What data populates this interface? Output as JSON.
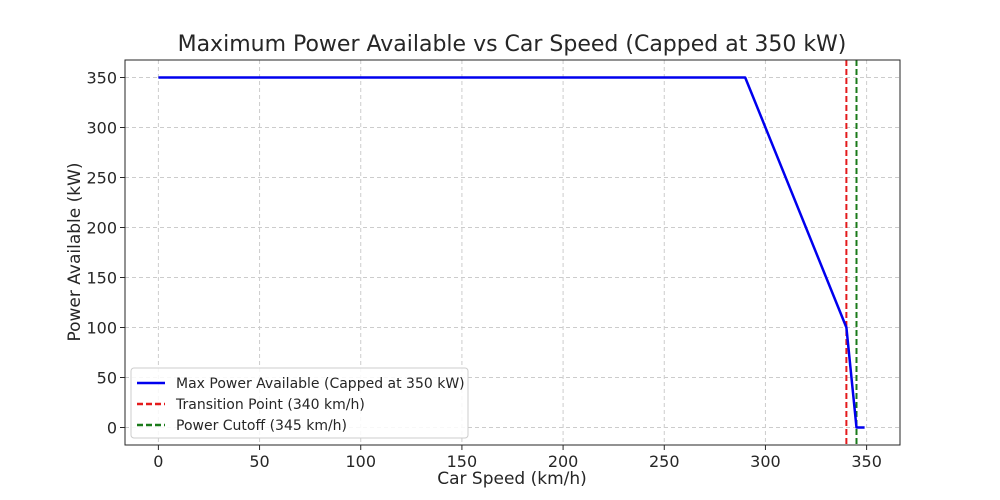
{
  "chart_data": {
    "type": "line",
    "title": "Maximum Power Available vs Car Speed (Capped at 350 kW)",
    "xlabel": "Car Speed (km/h)",
    "ylabel": "Power Available (kW)",
    "xlim": [
      -16.5,
      366.5
    ],
    "ylim": [
      -17.5,
      367.5
    ],
    "xticks": [
      0,
      50,
      100,
      150,
      200,
      250,
      300,
      350
    ],
    "yticks": [
      0,
      50,
      100,
      150,
      200,
      250,
      300,
      350
    ],
    "grid": true,
    "legend_position": "lower-left",
    "series": [
      {
        "name": "Max Power Available (Capped at 350 kW)",
        "color": "#0000ee",
        "style": "solid",
        "x": [
          0,
          290,
          340,
          345,
          349
        ],
        "y": [
          350,
          350,
          100,
          0,
          0
        ]
      }
    ],
    "vlines": [
      {
        "name": "Transition Point (340 km/h)",
        "x": 340,
        "color": "#e41a1c",
        "style": "dashed"
      },
      {
        "name": "Power Cutoff (345 km/h)",
        "x": 345,
        "color": "#1a7a1a",
        "style": "dashed"
      }
    ]
  }
}
